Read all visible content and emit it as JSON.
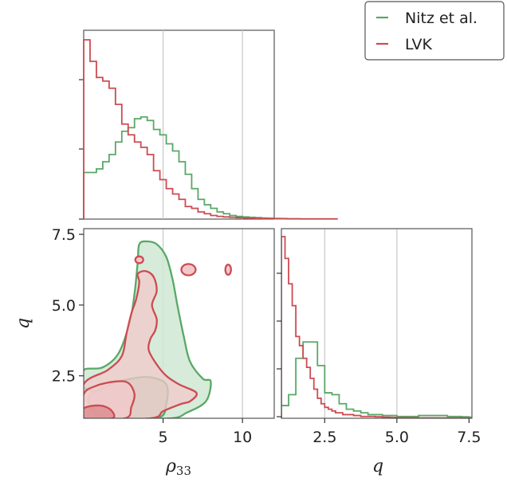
{
  "colors": {
    "nitz": "#58a866",
    "lvk": "#cd4b52",
    "nitz_fill": "#cfe8d2",
    "lvk_fill": "#f1c9cb",
    "lvk_fill_dark": "#d9868a",
    "nitz_fill_dark": "#a7d3ad"
  },
  "chart_data": [
    {
      "type": "histogram",
      "panel": "rho33-marginal",
      "xlim": [
        0,
        12
      ],
      "grid": true,
      "series": [
        {
          "name": "Nitz et al.",
          "bin_width": 0.4,
          "values": [
            0.26,
            0.26,
            0.28,
            0.32,
            0.36,
            0.43,
            0.49,
            0.51,
            0.56,
            0.57,
            0.55,
            0.5,
            0.47,
            0.42,
            0.38,
            0.32,
            0.25,
            0.17,
            0.11,
            0.08,
            0.06,
            0.04,
            0.03,
            0.02,
            0.015,
            0.012,
            0.01,
            0.008,
            0.006,
            0.005,
            0.004,
            0.003,
            0.002,
            0.002,
            0.001,
            0.001,
            0.001,
            0.001,
            0.001,
            0.001
          ]
        },
        {
          "name": "LVK",
          "bin_width": 0.4,
          "values": [
            1.0,
            0.88,
            0.79,
            0.77,
            0.73,
            0.64,
            0.53,
            0.47,
            0.43,
            0.4,
            0.36,
            0.27,
            0.22,
            0.17,
            0.14,
            0.11,
            0.07,
            0.06,
            0.04,
            0.03,
            0.02,
            0.015,
            0.012,
            0.01,
            0.008,
            0.006,
            0.005,
            0.004,
            0.003,
            0.003,
            0.002,
            0.002,
            0.001,
            0.001,
            0.001,
            0.001,
            0.001,
            0.001,
            0.001,
            0.001
          ]
        }
      ]
    },
    {
      "type": "contour",
      "panel": "joint",
      "xlim": [
        0,
        12
      ],
      "ylim": [
        1,
        7.7
      ],
      "x_ticks": [
        "5",
        "10"
      ],
      "y_ticks": [
        "2.5",
        "5.0",
        "7.5"
      ],
      "xlabel": "ρ33",
      "ylabel": "q",
      "series": [
        {
          "name": "Nitz et al.",
          "levels": [
            [
              [
                2.3,
                1.0
              ],
              [
                1.6,
                1.5
              ],
              [
                0.9,
                1.9
              ],
              [
                0,
                2.1
              ],
              [
                0,
                2.7
              ],
              [
                1.2,
                2.8
              ],
              [
                2.2,
                3.3
              ],
              [
                2.9,
                4.4
              ],
              [
                3.2,
                5.4
              ],
              [
                3.4,
                6.5
              ],
              [
                3.5,
                7.15
              ],
              [
                4.0,
                7.25
              ],
              [
                4.6,
                7.15
              ],
              [
                5.2,
                6.7
              ],
              [
                5.6,
                5.9
              ],
              [
                5.9,
                5.0
              ],
              [
                6.3,
                3.9
              ],
              [
                6.7,
                3.0
              ],
              [
                7.5,
                2.4
              ],
              [
                8.0,
                2.3
              ],
              [
                7.7,
                1.6
              ],
              [
                6.5,
                1.2
              ],
              [
                5.5,
                1.0
              ]
            ],
            [
              [
                1.3,
                1.0
              ],
              [
                0.3,
                1.7
              ],
              [
                1.5,
                2.15
              ],
              [
                3.0,
                2.4
              ],
              [
                4.2,
                2.45
              ],
              [
                5.2,
                2.2
              ],
              [
                5.2,
                1.5
              ],
              [
                4.6,
                1.0
              ]
            ]
          ]
        },
        {
          "name": "LVK",
          "levels": [
            [
              [
                0,
                1.0
              ],
              [
                0,
                2.2
              ],
              [
                1.5,
                2.7
              ],
              [
                2.4,
                3.2
              ],
              [
                2.7,
                4.0
              ],
              [
                3.0,
                4.7
              ],
              [
                3.3,
                5.2
              ],
              [
                3.5,
                5.8
              ],
              [
                3.4,
                6.1
              ],
              [
                3.9,
                6.2
              ],
              [
                4.4,
                6.0
              ],
              [
                4.6,
                5.5
              ],
              [
                4.3,
                5.0
              ],
              [
                4.6,
                4.5
              ],
              [
                4.5,
                4.1
              ],
              [
                4.2,
                3.8
              ],
              [
                4.1,
                3.4
              ],
              [
                4.6,
                2.9
              ],
              [
                5.2,
                2.5
              ],
              [
                6.0,
                2.2
              ],
              [
                7.1,
                1.9
              ],
              [
                6.7,
                1.6
              ],
              [
                6.1,
                1.5
              ],
              [
                5.0,
                1.25
              ],
              [
                4.2,
                1.0
              ]
            ],
            [
              [
                0,
                1.0
              ],
              [
                0,
                1.85
              ],
              [
                0.8,
                2.15
              ],
              [
                2.0,
                2.3
              ],
              [
                2.8,
                2.25
              ],
              [
                3.2,
                1.85
              ],
              [
                3.0,
                1.4
              ],
              [
                2.6,
                1.0
              ]
            ],
            [
              [
                0,
                1.0
              ],
              [
                0,
                1.35
              ],
              [
                1.0,
                1.45
              ],
              [
                1.7,
                1.3
              ],
              [
                1.8,
                1.0
              ]
            ]
          ]
        }
      ],
      "islands": [
        {
          "name": "LVK",
          "center": [
            3.5,
            6.6
          ],
          "r": [
            0.25,
            0.12
          ]
        },
        {
          "name": "LVK",
          "center": [
            6.6,
            6.25
          ],
          "r": [
            0.45,
            0.2
          ]
        },
        {
          "name": "LVK",
          "center": [
            9.1,
            6.25
          ],
          "r": [
            0.18,
            0.18
          ]
        }
      ]
    },
    {
      "type": "histogram",
      "panel": "q-marginal",
      "xlim": [
        1,
        7.6
      ],
      "x_ticks": [
        "2.5",
        "5.0",
        "7.5"
      ],
      "xlabel": "q",
      "grid": true,
      "series": [
        {
          "name": "Nitz et al.",
          "bin_width": 0.25,
          "start": 1.0,
          "values": [
            0.07,
            0.13,
            0.33,
            0.42,
            0.42,
            0.29,
            0.14,
            0.13,
            0.08,
            0.05,
            0.04,
            0.03,
            0.02,
            0.02,
            0.015,
            0.015,
            0.01,
            0.01,
            0.01,
            0.015,
            0.015,
            0.015,
            0.015,
            0.01,
            0.01,
            0.008,
            0.006,
            0.005,
            0.004,
            0.003
          ]
        },
        {
          "name": "LVK",
          "bin_width": 0.125,
          "start": 1.0,
          "values": [
            1.0,
            0.88,
            0.74,
            0.62,
            0.45,
            0.4,
            0.33,
            0.28,
            0.22,
            0.16,
            0.11,
            0.08,
            0.06,
            0.05,
            0.04,
            0.03,
            0.03,
            0.02,
            0.02,
            0.02,
            0.015,
            0.015,
            0.01,
            0.01,
            0.01,
            0.01,
            0.008,
            0.008,
            0.006,
            0.006,
            0.005,
            0.005,
            0.004,
            0.004,
            0.003,
            0.003,
            0.003,
            0.003,
            0.002,
            0.002,
            0.002,
            0.002,
            0.002,
            0.002,
            0.002,
            0.002,
            0.002,
            0.002,
            0.002,
            0.002,
            0.002,
            0.002
          ]
        }
      ]
    }
  ],
  "legend": {
    "items": [
      {
        "name": "Nitz et al.",
        "color_key": "nitz"
      },
      {
        "name": "LVK",
        "color_key": "lvk"
      }
    ]
  }
}
